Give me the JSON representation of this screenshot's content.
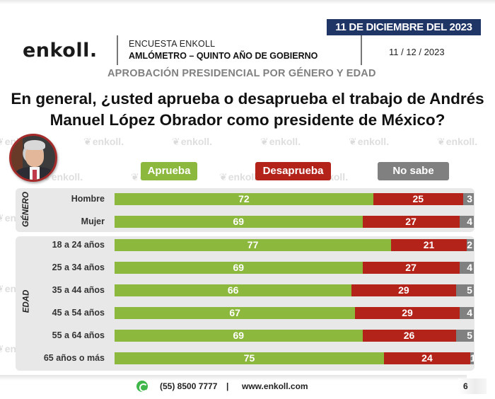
{
  "header": {
    "logo": "enkoll.",
    "survey_name": "ENCUESTA ENKOLL",
    "survey_subtitle": "AMLÓMETRO – QUINTO AÑO DE GOBIERNO",
    "section_title": "APROBACIÓN PRESIDENCIAL POR GÉNERO Y EDAD",
    "date_banner": "11 DE DICIEMBRE DEL 2023",
    "date_short": "11 / 12 / 2023"
  },
  "question": {
    "line1": "En general, ¿usted aprueba o desaprueba el trabajo de Andrés",
    "line2": "Manuel López Obrador como presidente de México?"
  },
  "watermark_text": "enkoll.",
  "colors": {
    "aprueba": "#8cb83d",
    "desaprueba": "#b3231a",
    "no_sabe": "#808080",
    "banner": "#1f3566"
  },
  "chart_data": {
    "type": "bar",
    "orientation": "horizontal",
    "stacked": true,
    "title": "APROBACIÓN PRESIDENCIAL POR GÉNERO Y EDAD",
    "xlabel": "",
    "ylabel": "",
    "xlim": [
      0,
      100
    ],
    "legend": [
      "Aprueba",
      "Desaprueba",
      "No sabe"
    ],
    "legend_position": "top",
    "groups": [
      {
        "name": "GÉNERO",
        "categories": [
          "Hombre",
          "Mujer"
        ]
      },
      {
        "name": "EDAD",
        "categories": [
          "18 a 24 años",
          "25 a 34 años",
          "35 a 44 años",
          "45 a 54 años",
          "55 a 64 años",
          "65 años o más"
        ]
      }
    ],
    "categories": [
      "Hombre",
      "Mujer",
      "18 a 24 años",
      "25 a 34 años",
      "35 a 44 años",
      "45 a 54 años",
      "55 a 64 años",
      "65 años o más"
    ],
    "series": [
      {
        "name": "Aprueba",
        "values": [
          72,
          69,
          77,
          69,
          66,
          67,
          69,
          75
        ]
      },
      {
        "name": "Desaprueba",
        "values": [
          25,
          27,
          21,
          27,
          29,
          29,
          26,
          24
        ]
      },
      {
        "name": "No sabe",
        "values": [
          3,
          4,
          2,
          4,
          5,
          4,
          5,
          1
        ]
      }
    ]
  },
  "footer": {
    "phone": "(55) 8500 7777",
    "separator": "|",
    "website": "www.enkoll.com",
    "page_number": "6"
  }
}
